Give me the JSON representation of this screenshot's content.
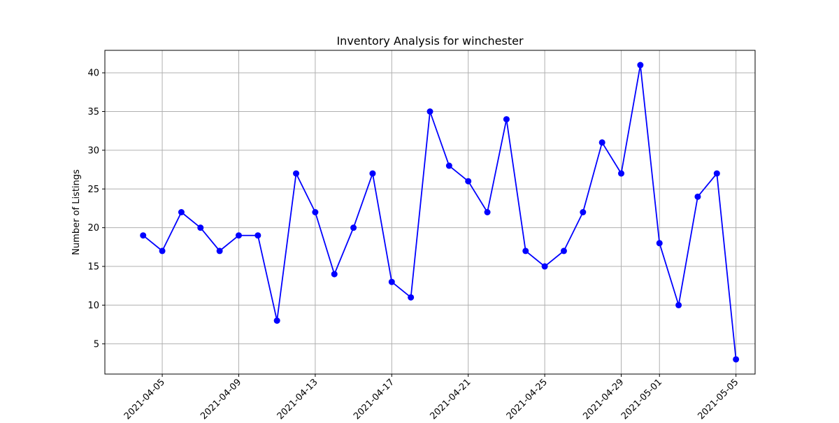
{
  "chart_data": {
    "type": "line",
    "title": "Inventory Analysis for winchester",
    "xlabel": "",
    "ylabel": "Number of Listings",
    "x": [
      "2021-04-04",
      "2021-04-05",
      "2021-04-06",
      "2021-04-07",
      "2021-04-08",
      "2021-04-09",
      "2021-04-10",
      "2021-04-11",
      "2021-04-12",
      "2021-04-13",
      "2021-04-14",
      "2021-04-15",
      "2021-04-16",
      "2021-04-17",
      "2021-04-18",
      "2021-04-19",
      "2021-04-20",
      "2021-04-21",
      "2021-04-22",
      "2021-04-23",
      "2021-04-24",
      "2021-04-25",
      "2021-04-26",
      "2021-04-27",
      "2021-04-28",
      "2021-04-29",
      "2021-04-30",
      "2021-05-01",
      "2021-05-02",
      "2021-05-03",
      "2021-05-04",
      "2021-05-05"
    ],
    "series": [
      {
        "values": [
          19,
          17,
          22,
          20,
          17,
          19,
          19,
          8,
          27,
          22,
          14,
          20,
          27,
          13,
          11,
          35,
          28,
          26,
          22,
          34,
          17,
          15,
          17,
          22,
          31,
          27,
          41,
          18,
          10,
          24,
          27,
          3
        ],
        "color": "#0000ff",
        "marker": "circle"
      }
    ],
    "x_ticks": [
      "2021-04-05",
      "2021-04-09",
      "2021-04-13",
      "2021-04-17",
      "2021-04-21",
      "2021-04-25",
      "2021-04-29",
      "2021-05-01",
      "2021-05-05"
    ],
    "y_ticks": [
      5,
      10,
      15,
      20,
      25,
      30,
      35,
      40
    ],
    "xlim": [
      "2021-04-02",
      "2021-05-06"
    ],
    "ylim": [
      1.1,
      42.9
    ],
    "grid": true
  }
}
